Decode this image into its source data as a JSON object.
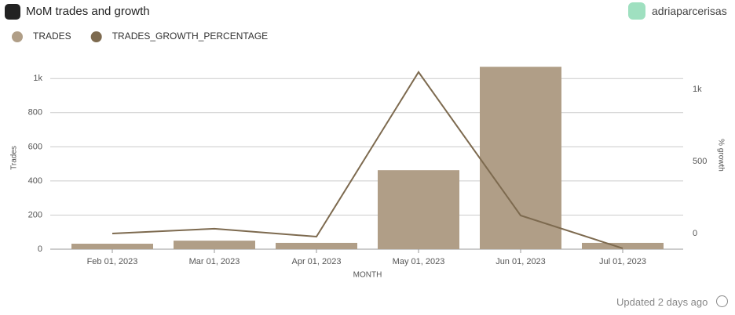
{
  "header": {
    "title": "MoM trades and growth",
    "user": "adriaparcerisas"
  },
  "footer": "Updated 2 days ago",
  "chart_data": {
    "type": "bar-line",
    "x_label": "MONTH",
    "y_label": "Trades",
    "y2_label": "% growth",
    "categories": [
      "Feb 01, 2023",
      "Mar 01, 2023",
      "Apr 01, 2023",
      "May 01, 2023",
      "Jun 01, 2023",
      "Jul 01, 2023"
    ],
    "series": [
      {
        "name": "TRADES",
        "color": "#b09e87",
        "values": [
          32,
          50,
          37,
          463,
          1069,
          37
        ]
      },
      {
        "name": "TRADES_GROWTH_PERCENTAGE",
        "color": "#7d6a4f",
        "axis": "y2",
        "values": [
          0,
          33,
          -22,
          1120,
          125,
          -103
        ]
      }
    ],
    "ylim": [
      0,
      1070
    ],
    "yticks": [
      0,
      200,
      400,
      600,
      800,
      {
        "value": 1000,
        "label": "1k"
      }
    ],
    "y2lim": [
      -109,
      1158
    ],
    "y2ticks": [
      0,
      500,
      {
        "value": 1000,
        "label": "1k"
      }
    ],
    "grid": true
  }
}
